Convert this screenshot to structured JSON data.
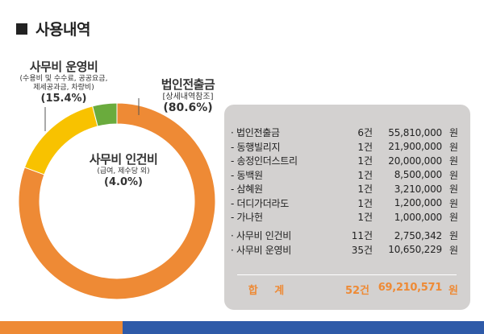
{
  "header": {
    "title": "사용내역"
  },
  "chart_data": {
    "type": "pie",
    "variant": "donut",
    "slices": [
      {
        "name": "법인전출금",
        "value": 80.6,
        "color": "#ee8a35"
      },
      {
        "name": "사무비 운영비",
        "value": 15.4,
        "color": "#f8c200"
      },
      {
        "name": "사무비 인건비",
        "value": 4.0,
        "color": "#6aab3d"
      }
    ],
    "labels": {
      "card": {
        "name": "법인전출금",
        "sub": "[상세내역참조]",
        "pct": "(80.6%)"
      },
      "opex": {
        "name": "사무비 운영비",
        "sub1": "(수용비 및 수수료, 공공요금,",
        "sub2": "제세공과금, 차량비)",
        "pct": "(15.4%)"
      },
      "labor": {
        "name": "사무비 인건비",
        "sub": "(급여, 제수당 외)",
        "pct": "(4.0%)"
      }
    }
  },
  "panel": {
    "rows": [
      {
        "name": "· 법인전출금",
        "count": "6건",
        "amount": "55,810,000",
        "unit": "원"
      },
      {
        "name": "- 동행빌리지",
        "count": "1건",
        "amount": "21,900,000",
        "unit": "원"
      },
      {
        "name": "- 송정인더스트리",
        "count": "1건",
        "amount": "20,000,000",
        "unit": "원"
      },
      {
        "name": "- 동백원",
        "count": "1건",
        "amount": "8,500,000",
        "unit": "원"
      },
      {
        "name": "- 삼혜원",
        "count": "1건",
        "amount": "3,210,000",
        "unit": "원"
      },
      {
        "name": "- 더디가더라도",
        "count": "1건",
        "amount": "1,200,000",
        "unit": "원"
      },
      {
        "name": "- 가나헌",
        "count": "1건",
        "amount": "1,000,000",
        "unit": "원"
      }
    ],
    "rows2": [
      {
        "name": "· 사무비 인건비",
        "count": "11건",
        "amount": "2,750,342",
        "unit": "원"
      },
      {
        "name": "· 사무비 운영비",
        "count": "35건",
        "amount": "10,650,229",
        "unit": "원"
      }
    ],
    "total": {
      "label": "합 계",
      "count": "52건",
      "amount": "69,210,571",
      "unit": "원"
    }
  },
  "footer": {
    "left_color": "#ee8a35",
    "right_color": "#2e5aa8"
  }
}
